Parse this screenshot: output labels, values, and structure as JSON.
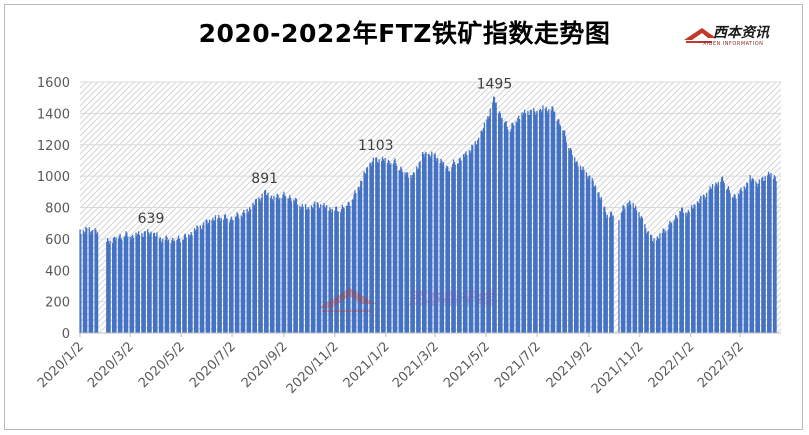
{
  "title": "2020-2022年FTZ铁矿指数走势图",
  "logo": {
    "name": "西本资讯",
    "tagline": "XIBEN INFORMATION"
  },
  "watermark": "西本新干线",
  "colors": {
    "bar": "#4472C4",
    "hatch": "#d4d4d4",
    "axis": "#bfbfbf",
    "text": "#595959",
    "logo_red": "#c0392b"
  },
  "chart_data": {
    "type": "bar",
    "title": "2020-2022年FTZ铁矿指数走势图",
    "xlabel": "",
    "ylabel": "",
    "ylim": [
      0,
      1600
    ],
    "yticks": [
      0,
      200,
      400,
      600,
      800,
      1000,
      1200,
      1400,
      1600
    ],
    "xticks": [
      "2020/1/2",
      "2020/3/2",
      "2020/5/2",
      "2020/7/2",
      "2020/9/2",
      "2020/11/2",
      "2021/1/2",
      "2021/3/2",
      "2021/5/2",
      "2021/7/2",
      "2021/9/2",
      "2021/11/2",
      "2022/1/2",
      "2022/3/2"
    ],
    "annotations": [
      {
        "label": "639",
        "date": "2020-03-27",
        "value": 639
      },
      {
        "label": "891",
        "date": "2020-08-10",
        "value": 891
      },
      {
        "label": "1103",
        "date": "2020-12-21",
        "value": 1103
      },
      {
        "label": "1495",
        "date": "2021-05-12",
        "value": 1495
      }
    ],
    "series": [
      {
        "name": "",
        "points": [
          [
            "2020-01-02",
            645
          ],
          [
            "2020-01-10",
            655
          ],
          [
            "2020-01-20",
            650
          ],
          [
            "2020-02-03",
            575
          ],
          [
            "2020-02-14",
            610
          ],
          [
            "2020-02-24",
            625
          ],
          [
            "2020-03-05",
            620
          ],
          [
            "2020-03-16",
            630
          ],
          [
            "2020-03-27",
            639
          ],
          [
            "2020-04-07",
            600
          ],
          [
            "2020-04-17",
            595
          ],
          [
            "2020-04-28",
            600
          ],
          [
            "2020-05-08",
            615
          ],
          [
            "2020-05-18",
            650
          ],
          [
            "2020-05-29",
            690
          ],
          [
            "2020-06-08",
            720
          ],
          [
            "2020-06-18",
            740
          ],
          [
            "2020-06-29",
            730
          ],
          [
            "2020-07-09",
            750
          ],
          [
            "2020-07-20",
            775
          ],
          [
            "2020-07-30",
            830
          ],
          [
            "2020-08-10",
            891
          ],
          [
            "2020-08-20",
            860
          ],
          [
            "2020-08-31",
            880
          ],
          [
            "2020-09-10",
            870
          ],
          [
            "2020-09-21",
            815
          ],
          [
            "2020-10-01",
            790
          ],
          [
            "2020-10-12",
            820
          ],
          [
            "2020-10-22",
            800
          ],
          [
            "2020-11-02",
            785
          ],
          [
            "2020-11-12",
            800
          ],
          [
            "2020-11-23",
            850
          ],
          [
            "2020-12-03",
            960
          ],
          [
            "2020-12-14",
            1080
          ],
          [
            "2020-12-21",
            1103
          ],
          [
            "2021-01-04",
            1100
          ],
          [
            "2021-01-14",
            1085
          ],
          [
            "2021-01-25",
            1020
          ],
          [
            "2021-02-04",
            1000
          ],
          [
            "2021-02-15",
            1130
          ],
          [
            "2021-02-25",
            1140
          ],
          [
            "2021-03-08",
            1100
          ],
          [
            "2021-03-18",
            1050
          ],
          [
            "2021-03-29",
            1100
          ],
          [
            "2021-04-08",
            1140
          ],
          [
            "2021-04-19",
            1200
          ],
          [
            "2021-04-29",
            1300
          ],
          [
            "2021-05-12",
            1495
          ],
          [
            "2021-05-20",
            1380
          ],
          [
            "2021-05-31",
            1300
          ],
          [
            "2021-06-10",
            1380
          ],
          [
            "2021-06-21",
            1410
          ],
          [
            "2021-07-01",
            1405
          ],
          [
            "2021-07-12",
            1430
          ],
          [
            "2021-07-22",
            1420
          ],
          [
            "2021-08-02",
            1300
          ],
          [
            "2021-08-12",
            1150
          ],
          [
            "2021-08-23",
            1050
          ],
          [
            "2021-09-02",
            1000
          ],
          [
            "2021-09-13",
            900
          ],
          [
            "2021-09-23",
            760
          ],
          [
            "2021-10-08",
            740
          ],
          [
            "2021-10-18",
            840
          ],
          [
            "2021-10-28",
            800
          ],
          [
            "2021-11-08",
            680
          ],
          [
            "2021-11-18",
            580
          ],
          [
            "2021-11-29",
            640
          ],
          [
            "2021-12-09",
            700
          ],
          [
            "2021-12-20",
            780
          ],
          [
            "2021-12-30",
            770
          ],
          [
            "2022-01-10",
            830
          ],
          [
            "2022-01-20",
            880
          ],
          [
            "2022-01-31",
            950
          ],
          [
            "2022-02-10",
            980
          ],
          [
            "2022-02-21",
            870
          ],
          [
            "2022-03-03",
            900
          ],
          [
            "2022-03-14",
            980
          ],
          [
            "2022-03-24",
            950
          ],
          [
            "2022-04-04",
            1010
          ],
          [
            "2022-04-14",
            995
          ]
        ]
      }
    ],
    "grid": true,
    "legend": "none"
  }
}
